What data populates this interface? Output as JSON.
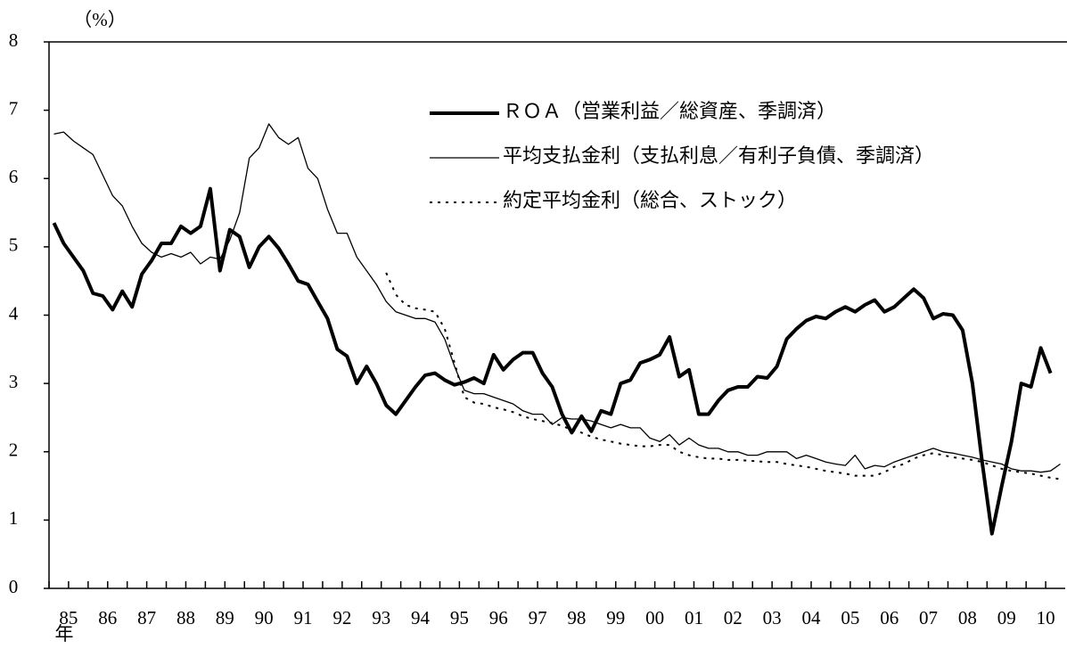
{
  "chart_data": {
    "type": "line",
    "y_unit": "（%）",
    "x_unit": "年",
    "categories": [
      null,
      "85",
      null,
      null,
      null,
      "86",
      null,
      null,
      null,
      "87",
      null,
      null,
      null,
      "88",
      null,
      null,
      null,
      "89",
      null,
      null,
      null,
      "90",
      null,
      null,
      null,
      "91",
      null,
      null,
      null,
      "92",
      null,
      null,
      null,
      "93",
      null,
      null,
      null,
      "94",
      null,
      null,
      null,
      "95",
      null,
      null,
      null,
      "96",
      null,
      null,
      null,
      "97",
      null,
      null,
      null,
      "98",
      null,
      null,
      null,
      "99",
      null,
      null,
      null,
      "00",
      null,
      null,
      null,
      "01",
      null,
      null,
      null,
      "02",
      null,
      null,
      null,
      "03",
      null,
      null,
      null,
      "04",
      null,
      null,
      null,
      "05",
      null,
      null,
      null,
      "06",
      null,
      null,
      null,
      "07",
      null,
      null,
      null,
      "08",
      null,
      null,
      null,
      "09",
      null,
      null,
      null,
      "10",
      null,
      null
    ],
    "series": [
      {
        "name": "ＲＯＡ（営業利益／総資産、季調済）",
        "color": "#000000",
        "style": "thick",
        "values": [
          5.35,
          5.05,
          4.85,
          4.65,
          4.32,
          4.28,
          4.08,
          4.35,
          4.12,
          4.6,
          4.8,
          5.05,
          5.05,
          5.3,
          5.2,
          5.3,
          5.85,
          4.65,
          5.25,
          5.15,
          4.7,
          5.0,
          5.15,
          4.98,
          4.75,
          4.5,
          4.45,
          4.2,
          3.95,
          3.5,
          3.4,
          3.0,
          3.25,
          3.0,
          2.68,
          2.55,
          2.75,
          2.95,
          3.12,
          3.15,
          3.05,
          2.98,
          3.02,
          3.08,
          3.0,
          3.42,
          3.2,
          3.35,
          3.45,
          3.45,
          3.15,
          2.95,
          2.55,
          2.28,
          2.52,
          2.3,
          2.6,
          2.55,
          3.0,
          3.05,
          3.3,
          3.35,
          3.42,
          3.68,
          3.1,
          3.2,
          2.55,
          2.55,
          2.75,
          2.9,
          2.95,
          2.95,
          3.1,
          3.08,
          3.25,
          3.65,
          3.8,
          3.92,
          3.98,
          3.95,
          4.05,
          4.12,
          4.05,
          4.15,
          4.22,
          4.05,
          4.12,
          4.25,
          4.38,
          4.25,
          3.95,
          4.02,
          4.0,
          3.78,
          3.0,
          1.85,
          0.8,
          1.5,
          2.15,
          3.0,
          2.95,
          3.52,
          3.15,
          null
        ]
      },
      {
        "name": "平均支払金利（支払利息／有利子負債、季調済）",
        "color": "#000000",
        "style": "thin",
        "values": [
          6.65,
          6.68,
          6.55,
          6.45,
          6.35,
          6.05,
          5.75,
          5.6,
          5.3,
          5.05,
          4.92,
          4.85,
          4.9,
          4.85,
          4.92,
          4.75,
          4.85,
          4.82,
          5.1,
          5.5,
          6.3,
          6.45,
          6.8,
          6.6,
          6.5,
          6.6,
          6.15,
          6.0,
          5.55,
          5.2,
          5.2,
          4.85,
          4.65,
          4.45,
          4.2,
          4.05,
          4.0,
          3.95,
          3.95,
          3.9,
          3.65,
          3.25,
          2.9,
          2.85,
          2.85,
          2.8,
          2.75,
          2.7,
          2.6,
          2.55,
          2.55,
          2.4,
          2.5,
          2.48,
          2.48,
          2.45,
          2.4,
          2.35,
          2.4,
          2.35,
          2.35,
          2.2,
          2.15,
          2.25,
          2.1,
          2.2,
          2.1,
          2.05,
          2.05,
          2.0,
          2.0,
          1.95,
          1.95,
          2.0,
          2.0,
          2.0,
          1.9,
          1.95,
          1.9,
          1.85,
          1.82,
          1.8,
          1.95,
          1.75,
          1.8,
          1.78,
          1.85,
          1.9,
          1.95,
          2.0,
          2.05,
          2.0,
          1.98,
          1.95,
          1.92,
          1.88,
          1.85,
          1.82,
          1.75,
          1.72,
          1.72,
          1.7,
          1.72,
          1.82
        ]
      },
      {
        "name": "約定平均金利（総合、ストック）",
        "color": "#000000",
        "style": "dotted",
        "values": [
          null,
          null,
          null,
          null,
          null,
          null,
          null,
          null,
          null,
          null,
          null,
          null,
          null,
          null,
          null,
          null,
          null,
          null,
          null,
          null,
          null,
          null,
          null,
          null,
          null,
          null,
          null,
          null,
          null,
          null,
          null,
          null,
          null,
          null,
          4.62,
          4.3,
          4.15,
          4.1,
          4.08,
          4.05,
          3.8,
          3.3,
          2.8,
          2.72,
          2.7,
          2.65,
          2.62,
          2.58,
          2.52,
          2.48,
          2.45,
          2.42,
          2.38,
          2.32,
          2.28,
          2.22,
          2.18,
          2.15,
          2.12,
          2.1,
          2.08,
          2.08,
          2.1,
          2.1,
          2.0,
          1.95,
          1.92,
          1.9,
          1.9,
          1.88,
          1.88,
          1.87,
          1.86,
          1.85,
          1.85,
          1.82,
          1.8,
          1.78,
          1.75,
          1.72,
          1.7,
          1.68,
          1.65,
          1.65,
          1.65,
          1.7,
          1.78,
          1.82,
          1.9,
          1.95,
          1.98,
          1.95,
          1.92,
          1.9,
          1.88,
          1.85,
          1.8,
          1.75,
          1.72,
          1.7,
          1.68,
          1.65,
          1.62,
          1.6
        ]
      }
    ],
    "ylim": [
      0,
      8
    ],
    "yticks": [
      0,
      1,
      2,
      3,
      4,
      5,
      6,
      7,
      8
    ],
    "legend": "upper right"
  }
}
